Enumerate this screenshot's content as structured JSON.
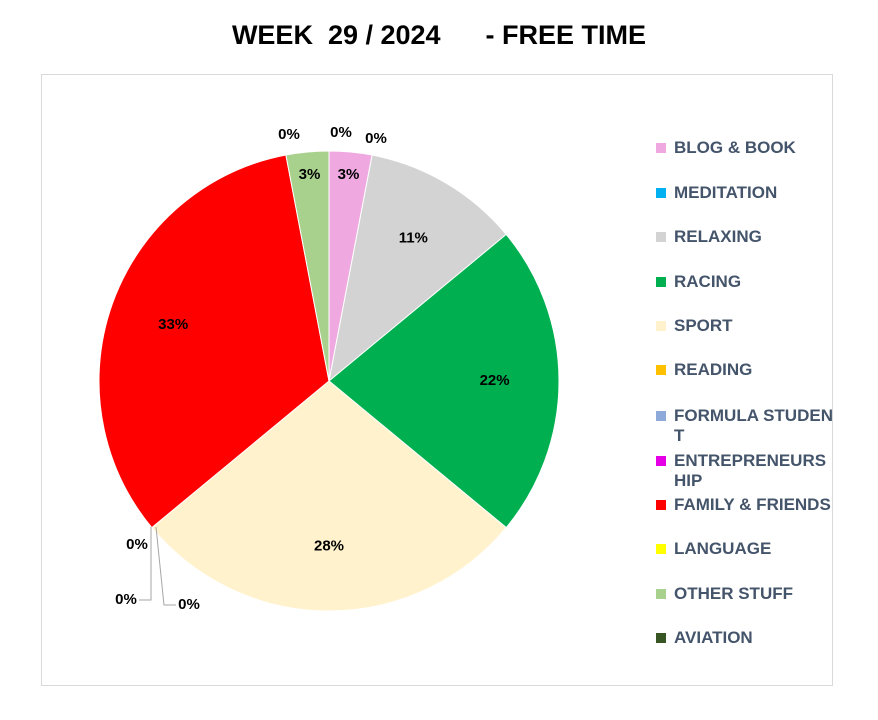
{
  "title": "WEEK  29 / 2024      - FREE TIME",
  "chart_data": {
    "type": "pie",
    "title": "WEEK  29 / 2024      - FREE TIME",
    "legend_position": "right",
    "slices": [
      {
        "name": "BLOG & BOOK",
        "value": 3,
        "label": "3%",
        "color": "#f0a8e0"
      },
      {
        "name": "MEDITATION",
        "value": 0,
        "label": "0%",
        "color": "#00b0f0"
      },
      {
        "name": "RELAXING",
        "value": 11,
        "label": "11%",
        "color": "#d4d3d4"
      },
      {
        "name": "RACING",
        "value": 22,
        "label": "22%",
        "color": "#00b050"
      },
      {
        "name": "SPORT",
        "value": 28,
        "label": "28%",
        "color": "#fff2cc"
      },
      {
        "name": "READING",
        "value": 0,
        "label": "0%",
        "color": "#ffc000"
      },
      {
        "name": "FORMULA STUDENT",
        "value": 0,
        "label": "0%",
        "color": "#8eaadb"
      },
      {
        "name": "ENTREPRENEURSHIP",
        "value": 0,
        "label": "0%",
        "color": "#e600e6"
      },
      {
        "name": "FAMILY & FRIENDS",
        "value": 33,
        "label": "33%",
        "color": "#ff0000"
      },
      {
        "name": "LANGUAGE",
        "value": 0,
        "label": "0%",
        "color": "#ffff00"
      },
      {
        "name": "OTHER STUFF",
        "value": 3,
        "label": "3%",
        "color": "#a9d18e"
      },
      {
        "name": "AVIATION",
        "value": 0,
        "label": "0%",
        "color": "#375623"
      }
    ]
  }
}
